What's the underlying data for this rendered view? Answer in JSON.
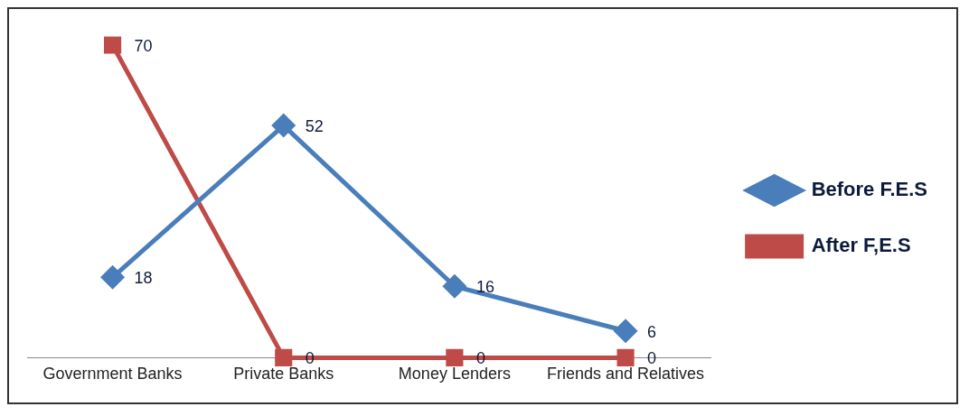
{
  "chart_data": {
    "type": "line",
    "categories": [
      "Government Banks",
      "Private Banks",
      "Money Lenders",
      "Friends and Relatives"
    ],
    "series": [
      {
        "name": "Before F.E.S",
        "color": "#4a7ebb",
        "values": [
          18,
          52,
          16,
          6
        ],
        "marker": "diamond"
      },
      {
        "name": "After F,E.S",
        "color": "#be4b48",
        "values": [
          70,
          0,
          0,
          0
        ],
        "marker": "square"
      }
    ],
    "data_labels": true,
    "legend": "right",
    "grid": false,
    "line_style": "solid"
  }
}
